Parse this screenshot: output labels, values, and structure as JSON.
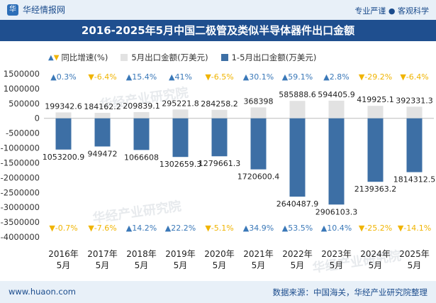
{
  "header": {
    "logo_text": "华经情报网",
    "tagline": "专业严谨 ● 客观科学"
  },
  "title": "2016-2025年5月中国二极管及类似半导体器件出口金额",
  "legend": {
    "growth": "同比增速(%)",
    "may": "5月出口金额(万美元)",
    "ytd": "1-5月出口金额(万美元)"
  },
  "colors": {
    "may_bar": "#e2e2e2",
    "ytd_bar": "#3d6fa5",
    "up": "#3a78b8",
    "down": "#f0b400",
    "title_bg": "#1f4f8f"
  },
  "watermark": "华经产业研究院",
  "footer": {
    "website": "www.huaon.com",
    "source": "数据来源：中国海关，华经产业研究院整理"
  },
  "chart_data": {
    "type": "bar",
    "categories": [
      "2016年\n5月",
      "2017年\n5月",
      "2018年\n5月",
      "2019年\n5月",
      "2020年\n5月",
      "2021年\n5月",
      "2022年\n5月",
      "2023年\n5月",
      "2024年\n5月",
      "2025年\n5月"
    ],
    "y_ticks": [
      1500000,
      1000000,
      500000,
      0,
      -500000,
      -1000000,
      -1500000,
      -2000000,
      -2500000,
      -3000000,
      -3500000,
      -4000000
    ],
    "ylim": [
      -4000000,
      1500000
    ],
    "series": [
      {
        "name": "5月出口金额(万美元)",
        "values": [
          199342.6,
          184162.2,
          209839.1,
          295221.8,
          284258.2,
          368398,
          585888.6,
          594405.9,
          419925.1,
          392331.3
        ],
        "labels": [
          "199342.6",
          "184162.2",
          "209839.1",
          "295221.8",
          "284258.2",
          "368398",
          "585888.6",
          "594405.9",
          "419925.1",
          "392331.3"
        ]
      },
      {
        "name": "1-5月出口金额(万美元)",
        "values": [
          -1053200.9,
          -949472,
          -1066608,
          -1302659.3,
          -1279661.3,
          -1720600.4,
          -2640487.9,
          -2906103.3,
          -2139363.2,
          -1814312.5
        ],
        "labels": [
          "1053200.9",
          "949472",
          "1066608",
          "1302659.3",
          "1279661.3",
          "1720600.4",
          "2640487.9",
          "2906103.3",
          "2139363.2",
          "1814312.5"
        ]
      }
    ],
    "growth_may": [
      0.3,
      -6.4,
      15.4,
      41,
      -6.5,
      30.1,
      59.1,
      2.8,
      -29.2,
      -6.4
    ],
    "growth_may_labels": [
      "0.3%",
      "-6.4%",
      "15.4%",
      "41%",
      "-6.5%",
      "30.1%",
      "59.1%",
      "2.8%",
      "-29.2%",
      "-6.4%"
    ],
    "growth_ytd": [
      -0.7,
      -7.6,
      14.2,
      22.2,
      -5.1,
      34.9,
      53.5,
      10.4,
      -25.2,
      -14.1
    ],
    "growth_ytd_labels": [
      "-0.7%",
      "-7.6%",
      "14.2%",
      "22.2%",
      "-5.1%",
      "34.9%",
      "53.5%",
      "10.4%",
      "-25.2%",
      "-14.1%"
    ]
  }
}
